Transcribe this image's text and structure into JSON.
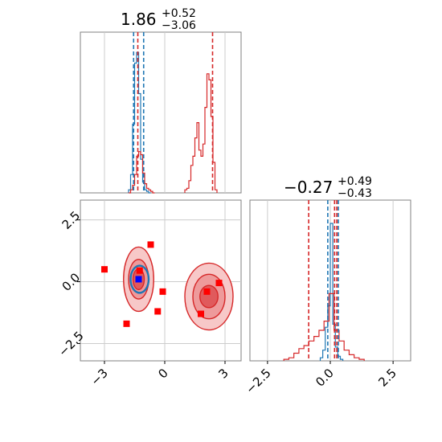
{
  "colors": {
    "blue": "#1f77b4",
    "red": "#d62728",
    "grid": "#cccccc",
    "frame": "#808080",
    "sample_blue": "#0000ff",
    "sample_red": "#ff0000"
  },
  "panels": {
    "top_left": {
      "title": {
        "main": "1.86",
        "sup": "+0.52",
        "sub": "−3.06"
      }
    },
    "bottom_right": {
      "title": {
        "main": "−0.27",
        "sup": "+0.49",
        "sub": "−0.43"
      }
    }
  },
  "chart_data": [
    {
      "type": "histogram",
      "panel": "param-1-marginal",
      "xlim": [
        -4.2,
        3.8
      ],
      "grid": true,
      "series": [
        {
          "color": "blue",
          "bins": [
            -1.75,
            -1.65,
            -1.55,
            -1.45,
            -1.35,
            -1.25,
            -1.15,
            -1.05,
            -0.95,
            -0.85,
            -0.75
          ],
          "counts": [
            0.02,
            0.12,
            0.45,
            0.85,
            0.92,
            0.65,
            0.22,
            0.07,
            0.02,
            0.01,
            0.0
          ],
          "quantile_lines": [
            -1.55,
            -1.05
          ]
        },
        {
          "color": "red",
          "bins": [
            -1.75,
            -1.65,
            -1.55,
            -1.45,
            -1.35,
            -1.25,
            -1.15,
            -1.05,
            -0.95,
            -0.85,
            -0.75,
            -0.65,
            -0.55,
            1.05,
            1.15,
            1.25,
            1.35,
            1.45,
            1.55,
            1.65,
            1.75,
            1.85,
            1.95,
            2.05,
            2.15,
            2.25,
            2.35,
            2.45,
            2.55
          ],
          "counts": [
            0.0,
            0.02,
            0.05,
            0.12,
            0.24,
            0.27,
            0.25,
            0.13,
            0.06,
            0.03,
            0.02,
            0.01,
            0.0,
            0.02,
            0.03,
            0.08,
            0.18,
            0.24,
            0.36,
            0.46,
            0.28,
            0.24,
            0.32,
            0.56,
            0.78,
            0.74,
            0.5,
            0.2,
            0.02
          ],
          "quantile_lines": [
            -1.34,
            2.38
          ]
        }
      ]
    },
    {
      "type": "histogram",
      "panel": "param-2-marginal",
      "xlim": [
        -3.2,
        3.2
      ],
      "grid": true,
      "tick_labels": [
        "−2.5",
        "0.0",
        "2.5"
      ],
      "series": [
        {
          "color": "blue",
          "bins": [
            -0.35,
            -0.25,
            -0.15,
            -0.05,
            0.05,
            0.15,
            0.25,
            0.35,
            0.45
          ],
          "counts": [
            0.02,
            0.07,
            0.22,
            0.36,
            0.9,
            0.24,
            0.09,
            0.03,
            0.01
          ],
          "quantile_lines": [
            -0.1,
            0.32
          ]
        },
        {
          "color": "red",
          "bins": [
            -1.75,
            -1.55,
            -1.35,
            -1.15,
            -0.95,
            -0.75,
            -0.55,
            -0.35,
            -0.15,
            0.05,
            0.25,
            0.45,
            0.65,
            0.85,
            1.05,
            1.25
          ],
          "counts": [
            0.01,
            0.02,
            0.05,
            0.08,
            0.1,
            0.13,
            0.16,
            0.2,
            0.26,
            0.44,
            0.2,
            0.13,
            0.07,
            0.04,
            0.02,
            0.01
          ],
          "quantile_lines": [
            -0.86,
            0.17,
            0.26
          ]
        }
      ]
    },
    {
      "type": "scatter",
      "panel": "joint",
      "xlim": [
        -4.2,
        3.8
      ],
      "ylim": [
        -3.2,
        3.3
      ],
      "grid": true,
      "x_tick_labels": [
        "−3",
        "0",
        "3"
      ],
      "y_tick_labels": [
        "−2.5",
        "0.0",
        "2.5"
      ],
      "contours": [
        {
          "color": "red",
          "cx": -1.3,
          "cy": 0.1,
          "rx": [
            0.75,
            0.5,
            0.28
          ],
          "ry": [
            1.3,
            0.8,
            0.42
          ]
        },
        {
          "color": "red",
          "cx": 2.2,
          "cy": -0.6,
          "rx": [
            1.2,
            0.8,
            0.45
          ],
          "ry": [
            1.35,
            0.9,
            0.45
          ]
        },
        {
          "color": "blue",
          "cx": -1.25,
          "cy": 0.1,
          "rx": [
            0.45
          ],
          "ry": [
            0.55
          ]
        }
      ],
      "red_samples": [
        [
          -3.0,
          0.5
        ],
        [
          -1.9,
          -1.7
        ],
        [
          -0.7,
          1.5
        ],
        [
          -0.1,
          -0.4
        ],
        [
          -0.35,
          -1.2
        ],
        [
          -1.25,
          0.45
        ],
        [
          1.8,
          -1.3
        ],
        [
          2.1,
          -0.4
        ],
        [
          2.7,
          -0.05
        ]
      ],
      "blue_samples": [
        [
          -1.3,
          0.1
        ]
      ]
    }
  ]
}
